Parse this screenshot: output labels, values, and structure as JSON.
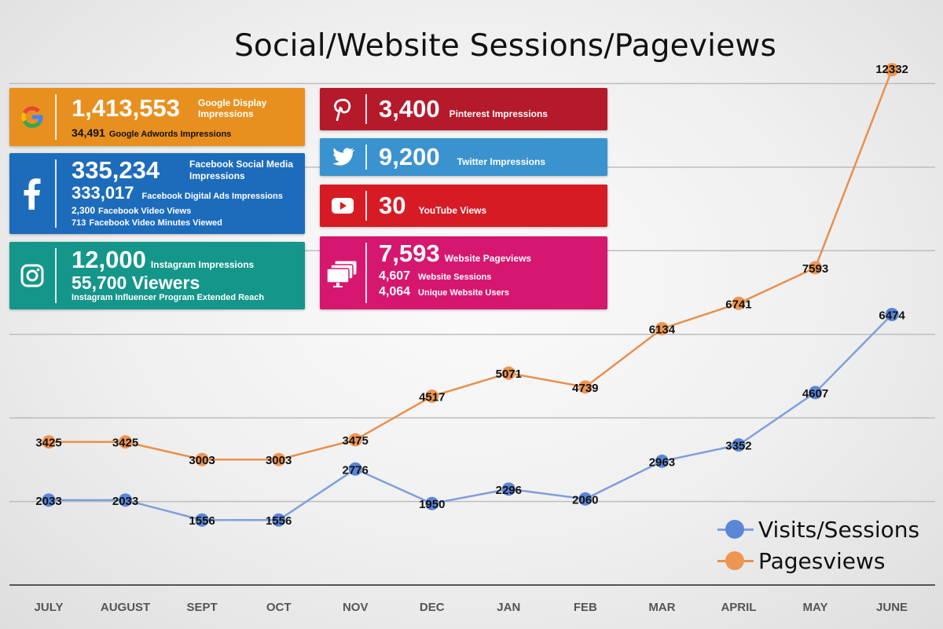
{
  "title": "Social/Website Sessions/Pageviews",
  "colors": {
    "google": "#e8901f",
    "facebook": "#1d6cbc",
    "instagram": "#15968a",
    "pinterest": "#b51a2b",
    "twitter": "#3a93cf",
    "youtube": "#d71b24",
    "website": "#d6176f",
    "sessions_line": "#7f9fdc",
    "sessions_dot": "#5b86d6",
    "pageviews_line": "#e8904e",
    "pageviews_dot": "#ef9552"
  },
  "stats": {
    "google": {
      "icon": "google-g-icon",
      "big": "1,413,553",
      "big_label": "Google Display Impressions",
      "line2_value": "34,491",
      "line2_label": "Google Adwords Impressions"
    },
    "facebook": {
      "icon": "facebook-f-icon",
      "big": "335,234",
      "big_label": "Facebook Social Media Impressions",
      "line2_value": "333,017",
      "line2_label": "Facebook Digital Ads Impressions",
      "line3_value": "2,300",
      "line3_label": "Facebook Video Views",
      "line4_value": "713",
      "line4_label": "Facebook Video Minutes Viewed"
    },
    "instagram": {
      "icon": "instagram-camera-icon",
      "big": "12,000",
      "big_label": "Instagram Impressions",
      "line2": "55,700 Viewers",
      "line3": "Instagram Influencer Program Extended Reach"
    },
    "pinterest": {
      "icon": "pinterest-p-icon",
      "big": "3,400",
      "big_label": "Pinterest Impressions"
    },
    "twitter": {
      "icon": "twitter-bird-icon",
      "big": "9,200",
      "big_label": "Twitter Impressions"
    },
    "youtube": {
      "icon": "youtube-play-icon",
      "big": "30",
      "big_label": "YouTube Views"
    },
    "website": {
      "icon": "monitor-stack-icon",
      "big": "7,593",
      "big_label": "Website Pageviews",
      "line2_value": "4,607",
      "line2_label": "Website Sessions",
      "line3_value": "4,064",
      "line3_label": "Unique Website Users"
    }
  },
  "chart_data": {
    "type": "line",
    "title": "Social/Website Sessions/Pageviews",
    "categories": [
      "JULY",
      "AUGUST",
      "SEPT",
      "OCT",
      "NOV",
      "DEC",
      "JAN",
      "FEB",
      "MAR",
      "APRIL",
      "MAY",
      "JUNE"
    ],
    "series": [
      {
        "name": "Visits/Sessions",
        "values": [
          2033,
          2033,
          1556,
          1556,
          2776,
          1950,
          2296,
          2060,
          2963,
          3352,
          4607,
          6474
        ]
      },
      {
        "name": "Pagesviews",
        "values": [
          3425,
          3425,
          3003,
          3003,
          3475,
          4517,
          5071,
          4739,
          6134,
          6741,
          7593,
          12332
        ]
      }
    ],
    "ylim": [
      0,
      14000
    ],
    "grid": true,
    "legend": "bottom-right",
    "data_labels": true
  }
}
